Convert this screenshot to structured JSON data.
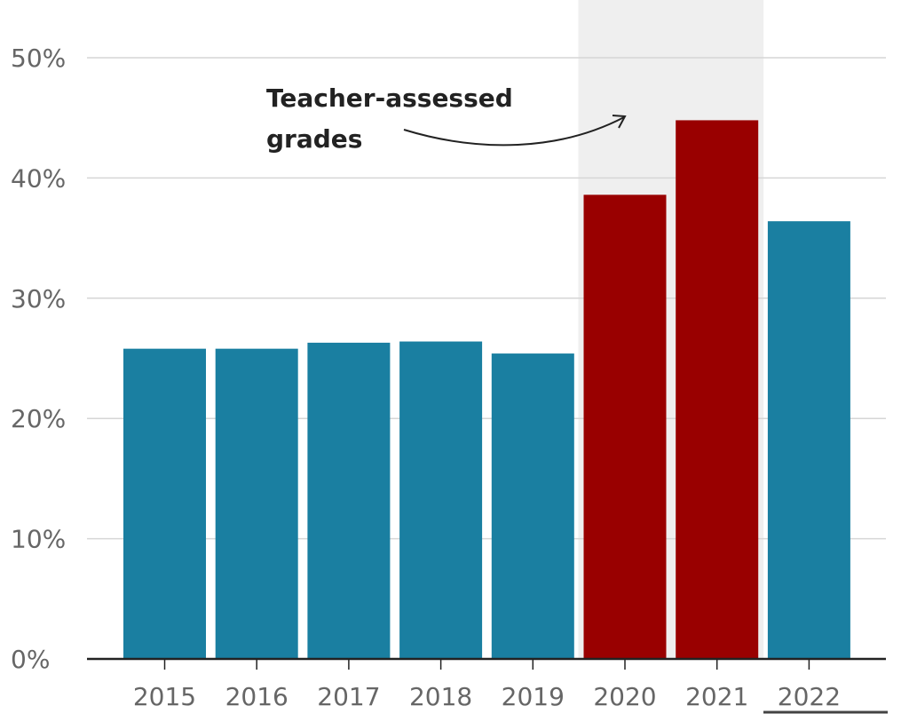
{
  "chart_data": {
    "type": "bar",
    "categories": [
      "2015",
      "2016",
      "2017",
      "2018",
      "2019",
      "2020",
      "2021",
      "2022"
    ],
    "values": [
      25.8,
      25.8,
      26.3,
      26.4,
      25.4,
      38.6,
      44.8,
      36.4
    ],
    "ylim": [
      0,
      50
    ],
    "yticks": [
      0,
      10,
      20,
      30,
      40,
      50
    ],
    "ytick_labels": [
      "0%",
      "10%",
      "20%",
      "30%",
      "40%",
      "50%"
    ],
    "grid": true,
    "highlight_range": [
      "2020",
      "2021"
    ],
    "annotation": {
      "line1": "Teacher-assessed",
      "line2": "grades"
    },
    "colors": {
      "default": "#1a7fa1",
      "highlight": "#990000",
      "shade": "#efefef",
      "grid": "#d6d6d6",
      "axis": "#222222"
    }
  }
}
